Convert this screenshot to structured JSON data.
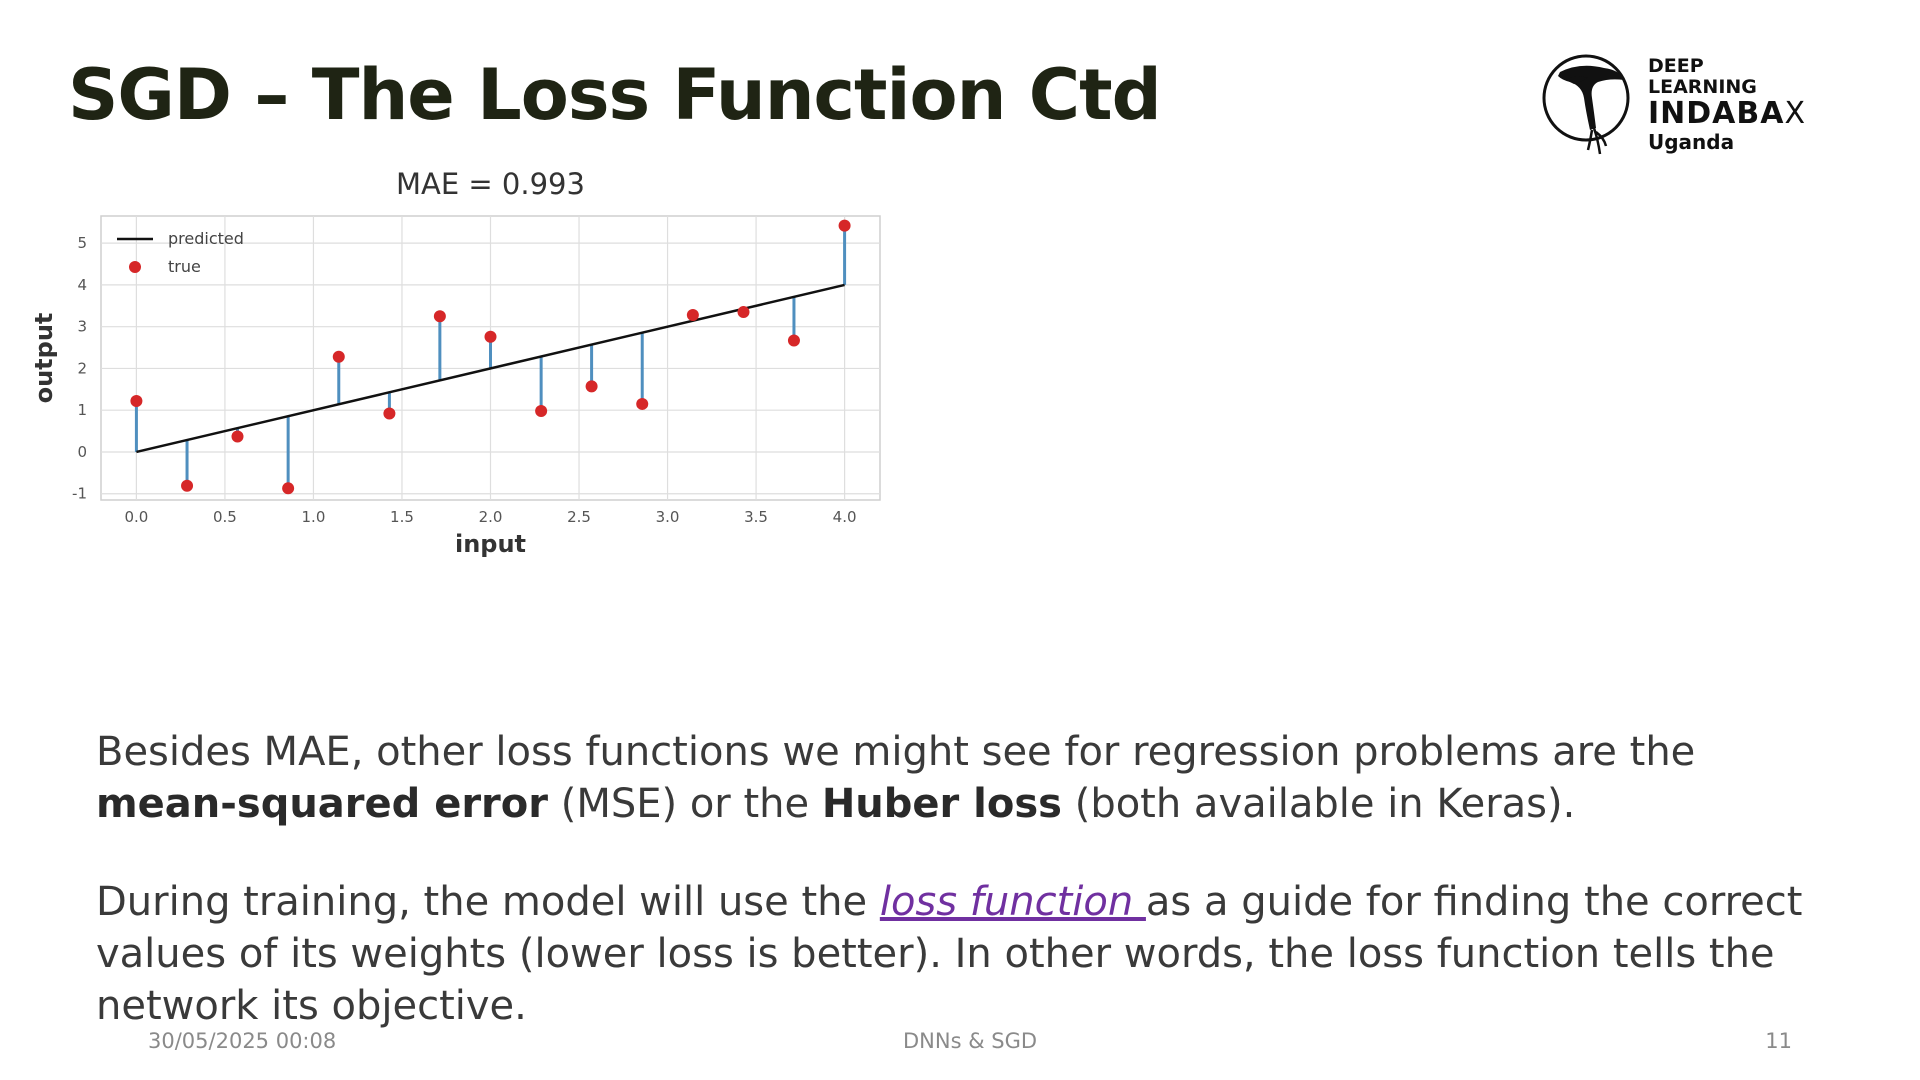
{
  "slide": {
    "title": "SGD – The Loss Function Ctd",
    "logo": {
      "line1": "DEEP",
      "line2": "LEARNING",
      "line3": "INDABA",
      "mark": "X",
      "line4": "Uganda",
      "icon": "tree-icon"
    },
    "paragraph1": {
      "t1": "Besides MAE, other loss functions we might see for regression problems are the ",
      "b1": "mean-squared error",
      "t2": " (MSE) or the ",
      "b2": "Huber loss",
      "t3": " (both available in Keras)."
    },
    "paragraph2": {
      "t1": "During training, the model will use the ",
      "link": "loss function ",
      "t2": "as a guide for finding the correct values of its weights (lower loss is better). In other words, the loss function tells the network its objective."
    },
    "footer": {
      "date": "30/05/2025 00:08",
      "center": "DNNs & SGD",
      "page": "11"
    }
  },
  "chart_data": {
    "type": "scatter",
    "title": "MAE = 0.993",
    "xlabel": "input",
    "ylabel": "output",
    "xlim": [
      -0.2,
      4.2
    ],
    "ylim": [
      -1.15,
      5.65
    ],
    "xticks": [
      0.0,
      0.5,
      1.0,
      1.5,
      2.0,
      2.5,
      3.0,
      3.5,
      4.0
    ],
    "xtick_labels": [
      "0.0",
      "0.5",
      "1.0",
      "1.5",
      "2.0",
      "2.5",
      "3.0",
      "3.5",
      "4.0"
    ],
    "yticks": [
      -1,
      0,
      1,
      2,
      3,
      4,
      5
    ],
    "ytick_labels": [
      "-1",
      "0",
      "1",
      "2",
      "3",
      "4",
      "5"
    ],
    "grid": true,
    "legend_position": "top-left",
    "colors": {
      "predicted": "#111111",
      "true": "#d62728",
      "residual": "#4f8fbf"
    },
    "series": [
      {
        "name": "predicted",
        "kind": "line",
        "x": [
          0.0,
          4.0
        ],
        "y": [
          0.0,
          4.0
        ]
      },
      {
        "name": "true",
        "kind": "points",
        "x": [
          0.0,
          0.286,
          0.571,
          0.857,
          1.143,
          1.429,
          1.714,
          2.0,
          2.286,
          2.571,
          2.857,
          3.143,
          3.429,
          3.714,
          4.0
        ],
        "y": [
          1.22,
          -0.81,
          0.37,
          -0.87,
          2.28,
          0.92,
          3.25,
          2.76,
          0.98,
          1.57,
          1.15,
          3.28,
          3.35,
          2.67,
          5.42
        ]
      }
    ]
  }
}
